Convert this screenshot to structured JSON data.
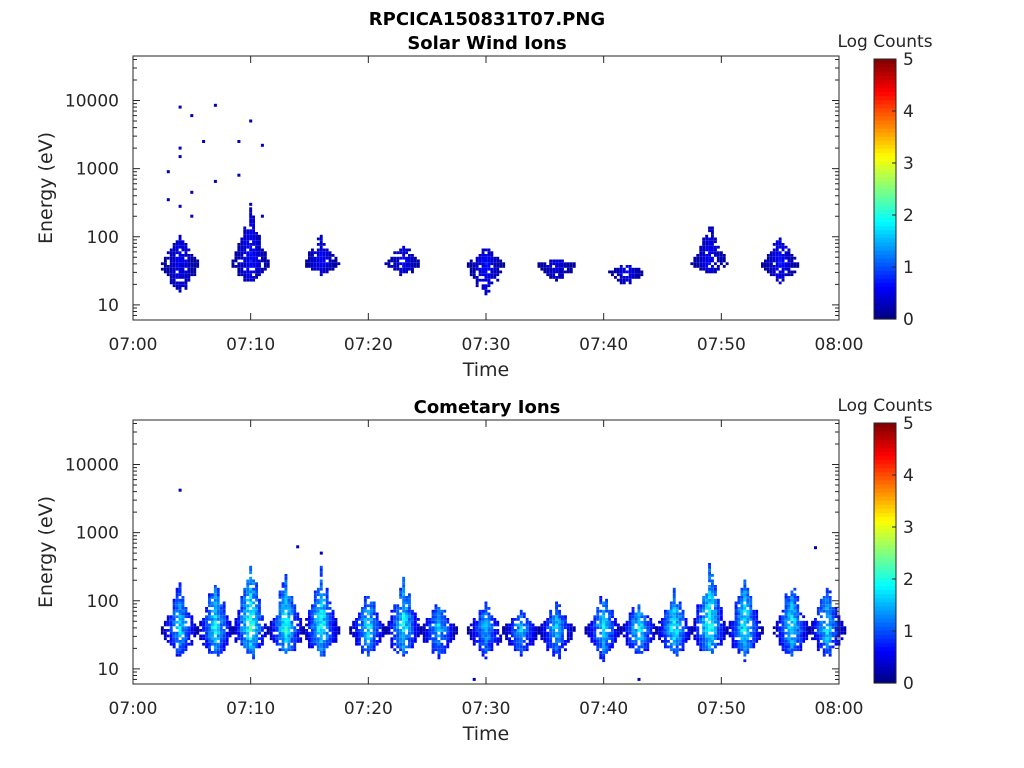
{
  "figure_title": "RPCICA150831T07.PNG",
  "colors": {
    "axis": "#262626",
    "background": "#ffffff"
  },
  "colormap": "jet",
  "chart_data": [
    {
      "type": "heatmap",
      "title": "Solar Wind Ions",
      "xlabel": "Time",
      "ylabel": "Energy (eV)",
      "y_scale": "log",
      "xlim": [
        "07:00",
        "08:00"
      ],
      "ylim": [
        6,
        45000
      ],
      "x_ticks": [
        "07:00",
        "07:10",
        "07:20",
        "07:30",
        "07:40",
        "07:50",
        "08:00"
      ],
      "y_ticks": [
        "10",
        "100",
        "1000",
        "10000"
      ],
      "colorbar": {
        "label": "Log Counts",
        "min": 0,
        "max": 5,
        "ticks": [
          "0",
          "1",
          "2",
          "3",
          "4",
          "5"
        ]
      },
      "bursts": [
        {
          "t": "07:04",
          "emin": 12,
          "epeak": 40,
          "emax": 180,
          "level": 0.6
        },
        {
          "t": "07:10",
          "emin": 18,
          "epeak": 40,
          "emax": 350,
          "level": 0.7
        },
        {
          "t": "07:16",
          "emin": 25,
          "epeak": 40,
          "emax": 120,
          "level": 0.65
        },
        {
          "t": "07:23",
          "emin": 25,
          "epeak": 40,
          "emax": 90,
          "level": 0.6
        },
        {
          "t": "07:30",
          "emin": 12,
          "epeak": 40,
          "emax": 75,
          "level": 0.7
        },
        {
          "t": "07:36",
          "emin": 18,
          "epeak": 40,
          "emax": 45,
          "level": 0.55
        },
        {
          "t": "07:42",
          "emin": 18,
          "epeak": 30,
          "emax": 40,
          "level": 0.6
        },
        {
          "t": "07:49",
          "emin": 25,
          "epeak": 40,
          "emax": 180,
          "level": 0.65
        },
        {
          "t": "07:55",
          "emin": 18,
          "epeak": 40,
          "emax": 130,
          "level": 0.7
        }
      ],
      "sparse_counts": [
        {
          "t": "07:04",
          "e": 8000
        },
        {
          "t": "07:05",
          "e": 6000
        },
        {
          "t": "07:07",
          "e": 8500
        },
        {
          "t": "07:04",
          "e": 2000
        },
        {
          "t": "07:04",
          "e": 1500
        },
        {
          "t": "07:06",
          "e": 2500
        },
        {
          "t": "07:03",
          "e": 900
        },
        {
          "t": "07:05",
          "e": 450
        },
        {
          "t": "07:07",
          "e": 650
        },
        {
          "t": "07:03",
          "e": 350
        },
        {
          "t": "07:04",
          "e": 280
        },
        {
          "t": "07:05",
          "e": 200
        },
        {
          "t": "07:10",
          "e": 5000
        },
        {
          "t": "07:09",
          "e": 2500
        },
        {
          "t": "07:11",
          "e": 2200
        },
        {
          "t": "07:09",
          "e": 800
        },
        {
          "t": "07:10",
          "e": 300
        },
        {
          "t": "07:11",
          "e": 200
        }
      ]
    },
    {
      "type": "heatmap",
      "title": "Cometary Ions",
      "xlabel": "Time",
      "ylabel": "Energy (eV)",
      "y_scale": "log",
      "xlim": [
        "07:00",
        "08:00"
      ],
      "ylim": [
        6,
        45000
      ],
      "x_ticks": [
        "07:00",
        "07:10",
        "07:20",
        "07:30",
        "07:40",
        "07:50",
        "08:00"
      ],
      "y_ticks": [
        "10",
        "100",
        "1000",
        "10000"
      ],
      "colorbar": {
        "label": "Log Counts",
        "min": 0,
        "max": 5,
        "ticks": [
          "0",
          "1",
          "2",
          "3",
          "4",
          "5"
        ]
      },
      "bursts": [
        {
          "t": "07:04",
          "emin": 12,
          "epeak": 38,
          "emax": 200,
          "level": 1.7
        },
        {
          "t": "07:07",
          "emin": 12,
          "epeak": 38,
          "emax": 250,
          "level": 1.9
        },
        {
          "t": "07:10",
          "emin": 12,
          "epeak": 38,
          "emax": 400,
          "level": 2.2
        },
        {
          "t": "07:13",
          "emin": 12,
          "epeak": 38,
          "emax": 280,
          "level": 2.0
        },
        {
          "t": "07:16",
          "emin": 12,
          "epeak": 38,
          "emax": 350,
          "level": 2.0
        },
        {
          "t": "07:20",
          "emin": 12,
          "epeak": 38,
          "emax": 150,
          "level": 1.8
        },
        {
          "t": "07:23",
          "emin": 12,
          "epeak": 38,
          "emax": 300,
          "level": 1.9
        },
        {
          "t": "07:26",
          "emin": 12,
          "epeak": 38,
          "emax": 120,
          "level": 1.7
        },
        {
          "t": "07:30",
          "emin": 12,
          "epeak": 38,
          "emax": 110,
          "level": 1.6
        },
        {
          "t": "07:33",
          "emin": 12,
          "epeak": 38,
          "emax": 80,
          "level": 1.6
        },
        {
          "t": "07:36",
          "emin": 12,
          "epeak": 38,
          "emax": 100,
          "level": 1.7
        },
        {
          "t": "07:40",
          "emin": 12,
          "epeak": 38,
          "emax": 150,
          "level": 1.8
        },
        {
          "t": "07:43",
          "emin": 12,
          "epeak": 38,
          "emax": 110,
          "level": 1.9
        },
        {
          "t": "07:46",
          "emin": 12,
          "epeak": 38,
          "emax": 180,
          "level": 2.0
        },
        {
          "t": "07:49",
          "emin": 12,
          "epeak": 38,
          "emax": 450,
          "level": 2.1
        },
        {
          "t": "07:52",
          "emin": 12,
          "epeak": 38,
          "emax": 280,
          "level": 2.0
        },
        {
          "t": "07:56",
          "emin": 12,
          "epeak": 38,
          "emax": 250,
          "level": 1.9
        },
        {
          "t": "07:59",
          "emin": 12,
          "epeak": 38,
          "emax": 200,
          "level": 1.8
        }
      ],
      "sparse_counts": [
        {
          "t": "07:04",
          "e": 4200
        },
        {
          "t": "07:14",
          "e": 620
        },
        {
          "t": "07:16",
          "e": 500
        },
        {
          "t": "07:58",
          "e": 600
        },
        {
          "t": "07:29",
          "e": 7
        },
        {
          "t": "07:43",
          "e": 7
        }
      ]
    }
  ]
}
